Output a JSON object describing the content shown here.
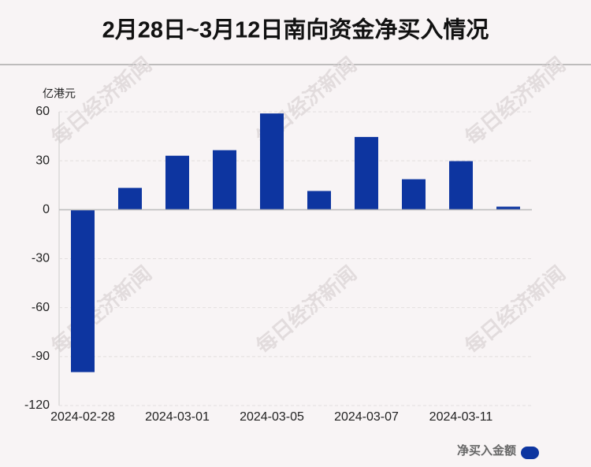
{
  "chart_data": {
    "type": "bar",
    "title": "2月28日~3月12日南向资金净买入情况",
    "y_label": "亿港元",
    "watermark": "每日经济新闻",
    "categories": [
      "2024-02-28",
      null,
      "2024-03-01",
      null,
      "2024-03-05",
      null,
      "2024-03-07",
      null,
      "2024-03-11",
      null
    ],
    "series": [
      {
        "name": "净买入金额",
        "color": "#0d35a0",
        "values": [
          -99.5,
          13.4,
          33.1,
          36.5,
          59.0,
          11.5,
          44.6,
          18.7,
          29.8,
          1.9
        ]
      }
    ],
    "ylim": [
      -120,
      60
    ],
    "yticks": [
      -120,
      -90,
      -60,
      -30,
      0,
      30,
      60
    ],
    "grid": true,
    "legend": "bottom-right"
  }
}
